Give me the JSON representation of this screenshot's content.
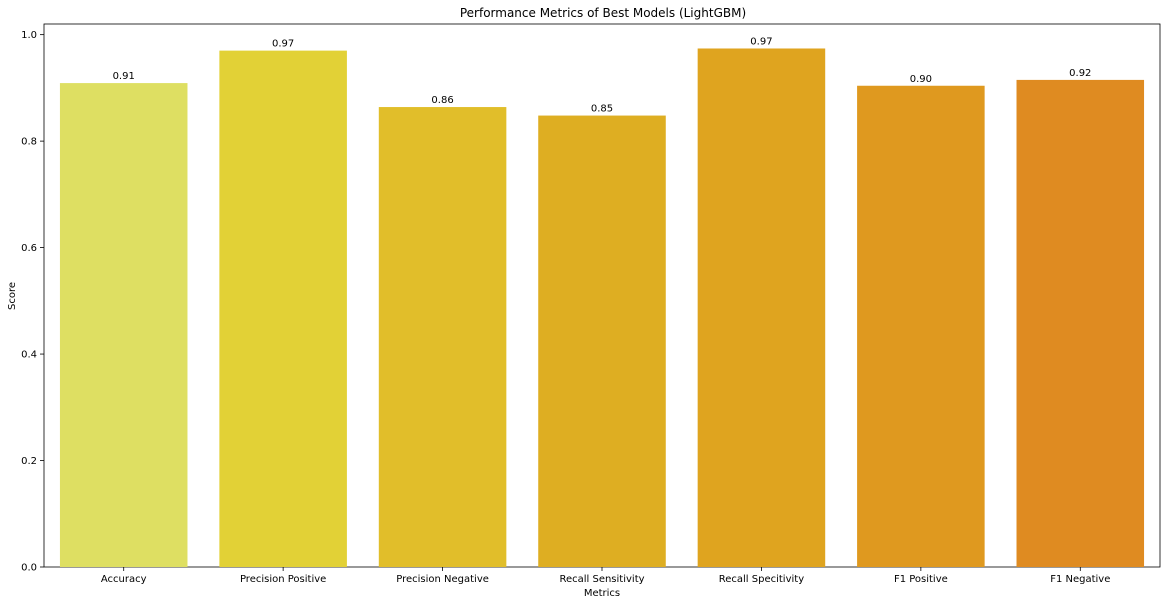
{
  "chart_data": {
    "type": "bar",
    "title": "Performance Metrics of Best Models (LightGBM)",
    "xlabel": "Metrics",
    "ylabel": "Score",
    "categories": [
      "Accuracy",
      "Precision Positive",
      "Precision Negative",
      "Recall Sensitivity",
      "Recall Specitivity",
      "F1 Positive",
      "F1 Negative"
    ],
    "values": [
      0.909,
      0.97,
      0.864,
      0.848,
      0.974,
      0.904,
      0.915
    ],
    "value_labels": [
      "0.91",
      "0.97",
      "0.86",
      "0.85",
      "0.97",
      "0.90",
      "0.92"
    ],
    "colors": [
      "#dedf62",
      "#e2d136",
      "#e1be2a",
      "#deae22",
      "#dfa41f",
      "#df991f",
      "#df8b21"
    ],
    "ylim": [
      0,
      1.02
    ],
    "yticks": [
      0.0,
      0.2,
      0.4,
      0.6,
      0.8,
      1.0
    ],
    "ytick_labels": [
      "0.0",
      "0.2",
      "0.4",
      "0.6",
      "0.8",
      "1.0"
    ],
    "grid": false,
    "legend": "none"
  }
}
